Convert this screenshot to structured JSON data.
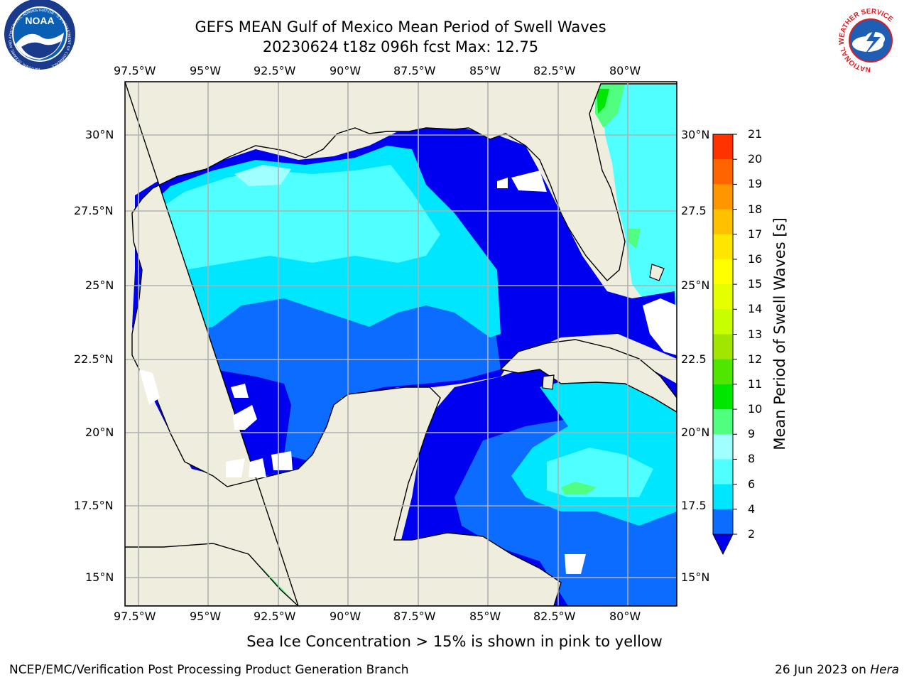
{
  "header": {
    "title": "GEFS MEAN Gulf of Mexico Mean Period of Swell Waves",
    "subtitle": "20230624 t18z 096h fcst   Max: 12.75"
  },
  "logos": {
    "noaa": {
      "text": "NOAA",
      "ring_text": "NATIONAL OCEANIC AND ATMOSPHERIC ADMINISTRATION · U.S. DEPARTMENT OF COMMERCE",
      "colors": {
        "ring": "#ffffff",
        "outer": "#1a3a8c",
        "sky": "#0a5fb4",
        "bird": "#ffffff"
      }
    },
    "nws": {
      "ring_text": "NATIONAL WEATHER SERVICE",
      "colors": {
        "ring_text": "#e11b22",
        "disk": "#1e5fb4",
        "cloud": "#ffffff"
      }
    }
  },
  "map": {
    "lon_ticks": [
      "97.5°W",
      "95°W",
      "92.5°W",
      "90°W",
      "87.5°W",
      "85°W",
      "82.5°W",
      "80°W"
    ],
    "lat_ticks_left": [
      "30°N",
      "27.5°N",
      "25°N",
      "22.5°N",
      "20°N",
      "17.5°N",
      "15°N"
    ],
    "lat_ticks_right": [
      "30°N",
      "27.5",
      "25°N",
      "22.5",
      "20°N",
      "17.5",
      "15°N"
    ],
    "land_color": "#efedde",
    "grid_color": "#b0b0b0"
  },
  "colorbar": {
    "label": "Mean Period of Swell Waves [s]",
    "ticks": [
      "2",
      "4",
      "6",
      "8",
      "9",
      "10",
      "11",
      "12",
      "13",
      "14",
      "15",
      "16",
      "17",
      "18",
      "19",
      "20",
      "21"
    ],
    "colors": [
      "#0b6cff",
      "#00e6ff",
      "#50ffff",
      "#a0ffff",
      "#50ff80",
      "#00e600",
      "#50e600",
      "#a0e600",
      "#c8ff00",
      "#e6ff00",
      "#ffff00",
      "#ffe600",
      "#ffc000",
      "#ff9600",
      "#ff6400",
      "#ff3200",
      "#ff0000"
    ],
    "extend_color": "#0000f0"
  },
  "notes": {
    "ice": "Sea Ice Concentration > 15% is shown in pink to yellow"
  },
  "footer": {
    "left": "NCEP/EMC/Verification Post Processing Product Generation Branch",
    "right_prefix": "26 Jun 2023 on ",
    "right_host": "Hera"
  }
}
